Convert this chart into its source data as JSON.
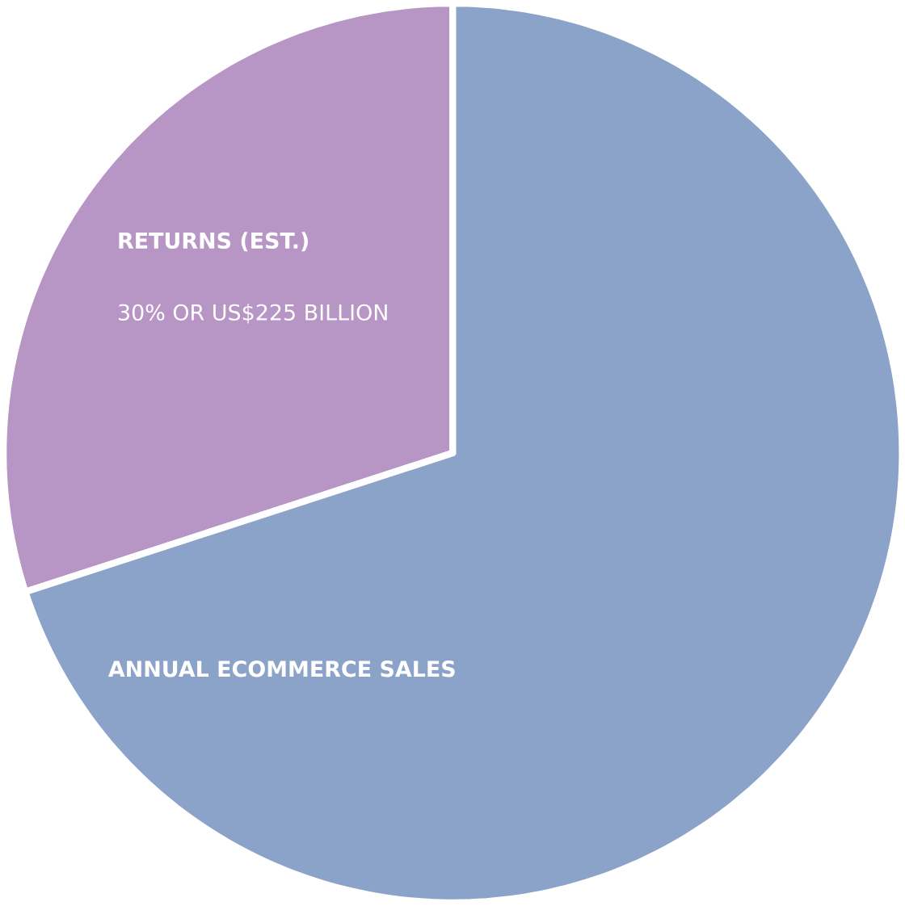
{
  "chart_data": {
    "type": "pie",
    "categories": [
      "RETURNS (EST.)",
      "ANNUAL ECOMMERCE SALES"
    ],
    "values": [
      30,
      70
    ],
    "colors": [
      "#b795c4",
      "#8ca3c9"
    ],
    "value_labels": [
      "30% OR US$225 BILLION",
      null
    ]
  }
}
